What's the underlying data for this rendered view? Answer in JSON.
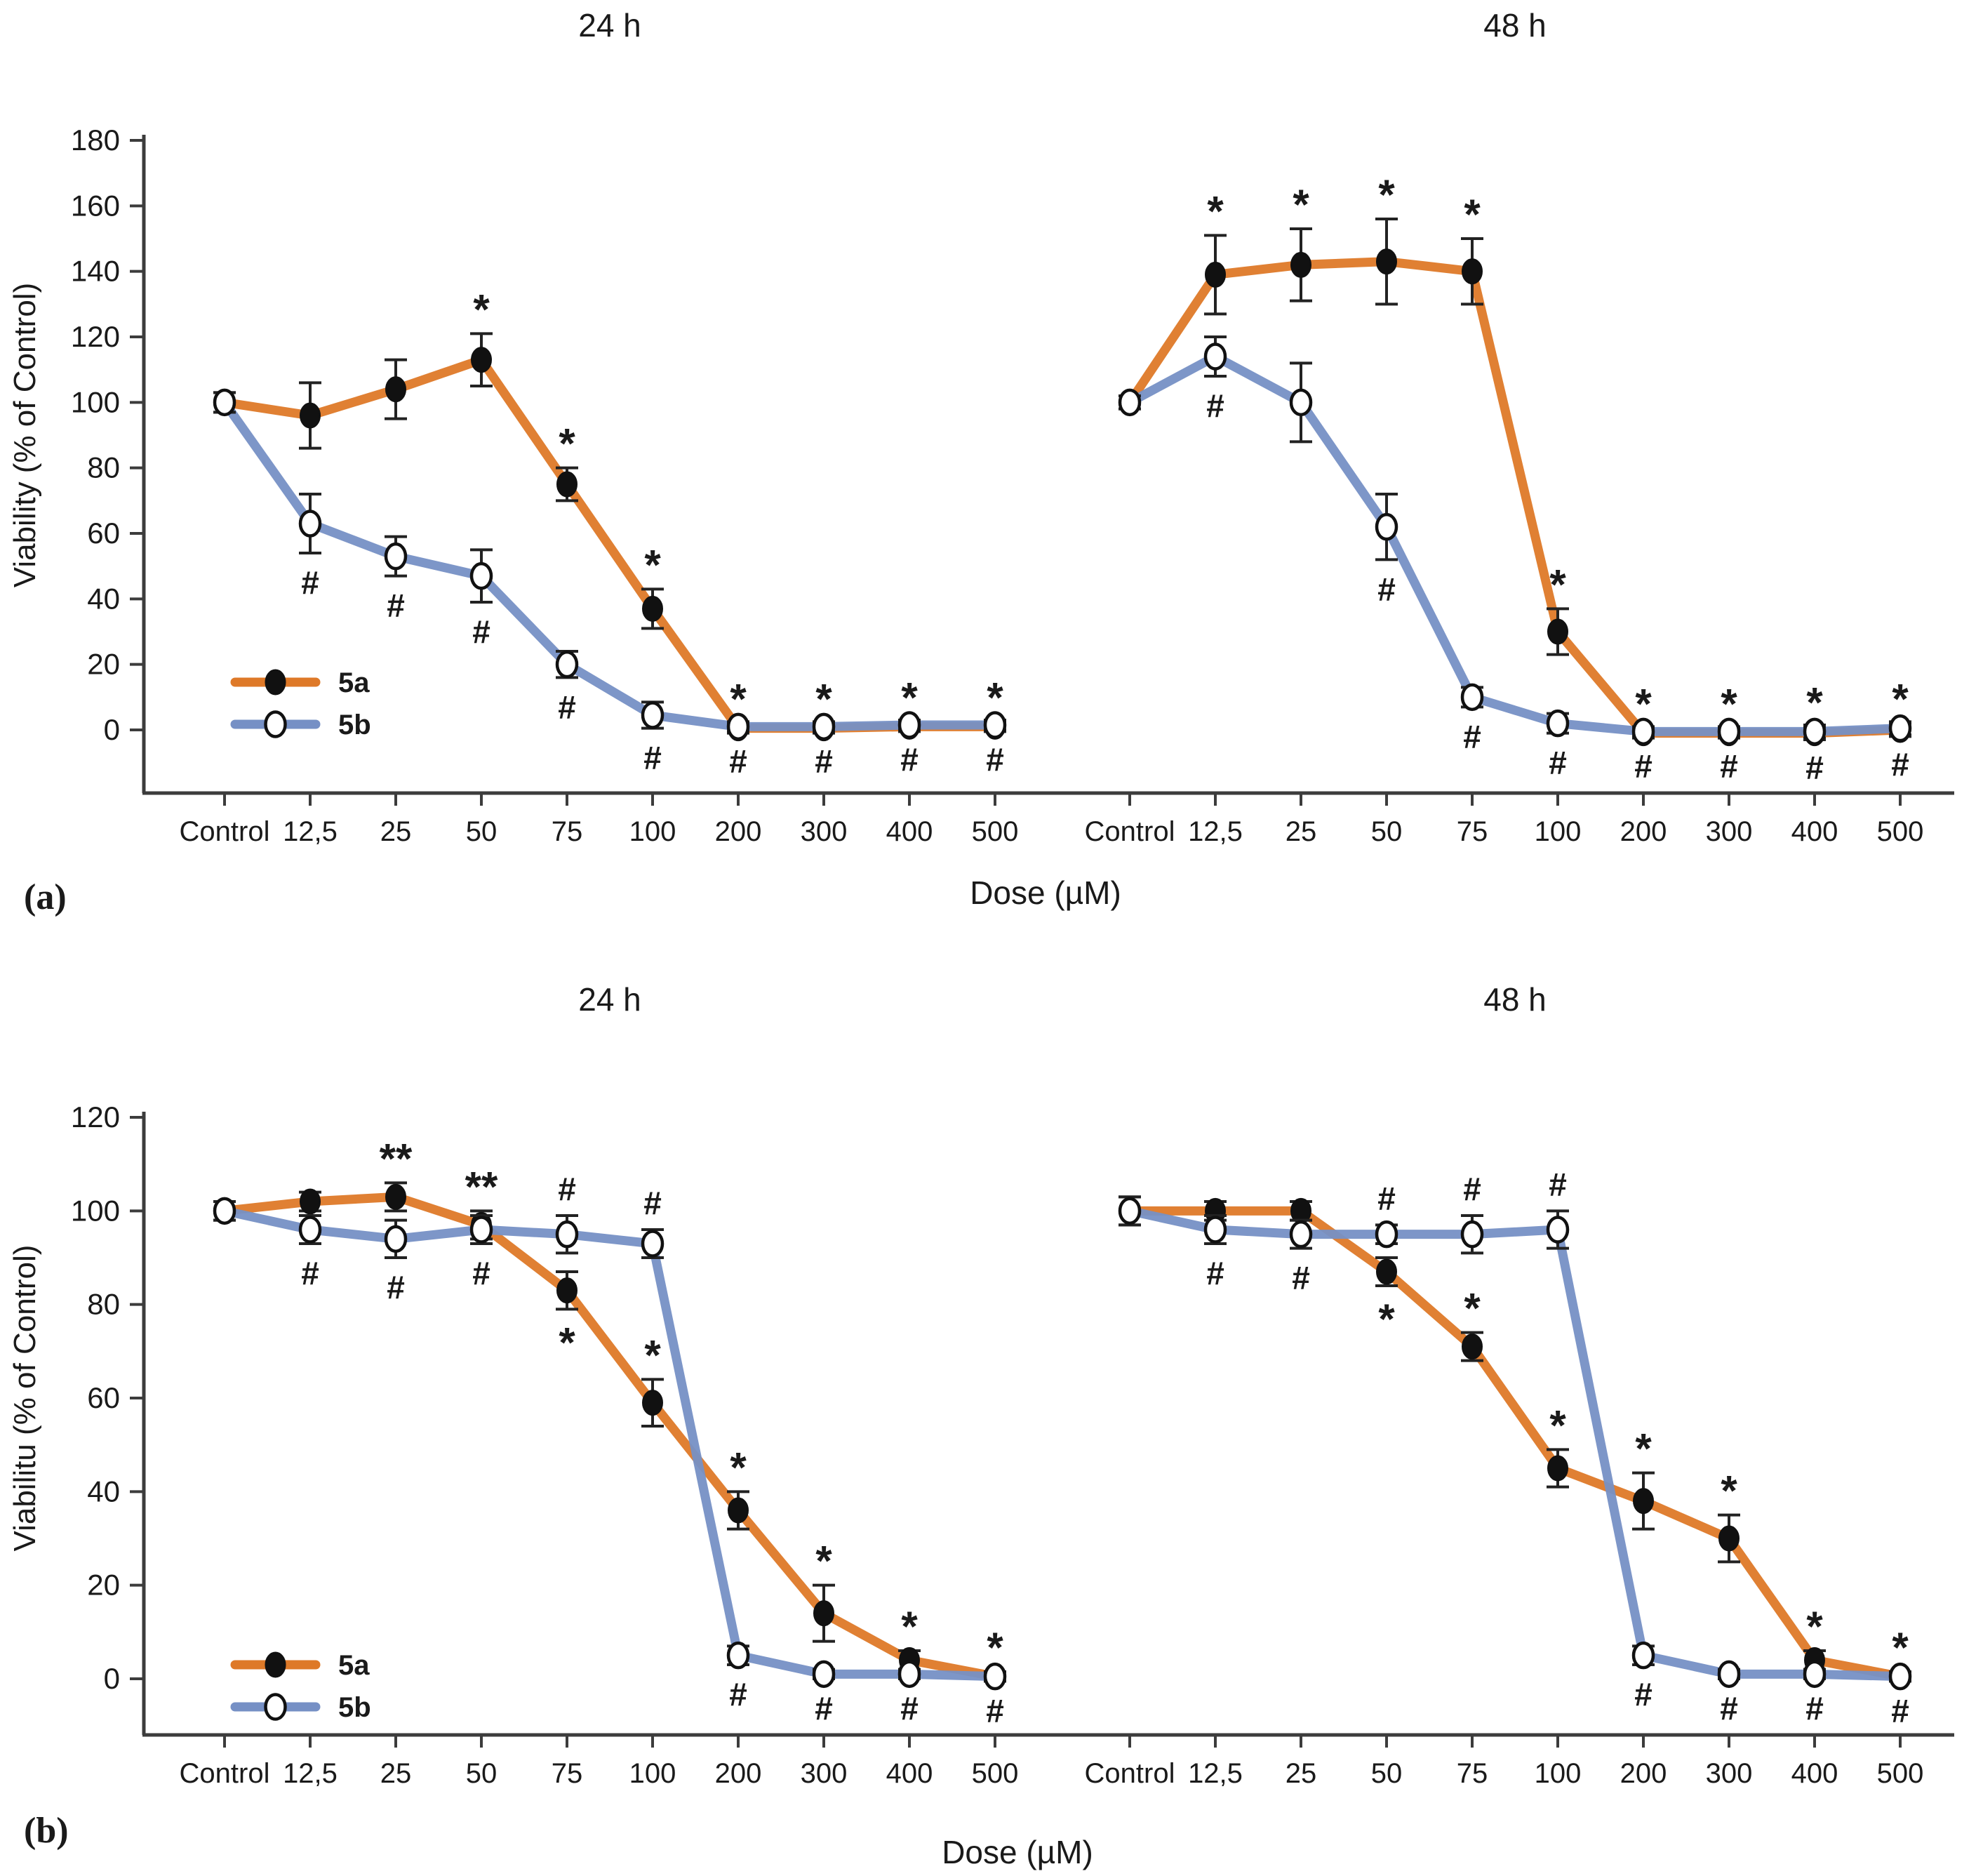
{
  "figure": {
    "background": "#ffffff",
    "axis_color": "#3c3c3c",
    "error_bar_color": "#222222",
    "annotation_color": "#111111"
  },
  "chart_data": [
    {
      "type": "line",
      "panel_label": "(a)",
      "ylabel": "Viability (% of Control)",
      "xlabel": "Dose (µM)",
      "ylim": [
        0,
        180
      ],
      "ytick_step": 20,
      "grid": false,
      "legend_position": "lower-left-inside",
      "categories": [
        "Control",
        "12,5",
        "25",
        "50",
        "75",
        "100",
        "200",
        "300",
        "400",
        "500"
      ],
      "legend": [
        {
          "label": "5a",
          "color": "#DE7928",
          "marker": "filled"
        },
        {
          "label": "5b",
          "color": "#7690C5",
          "marker": "open"
        }
      ],
      "subplots": [
        {
          "title": "24 h",
          "series": [
            {
              "name": "5a",
              "color": "#DE7928",
              "marker": "filled",
              "values": [
                100,
                96,
                104,
                113,
                75,
                37,
                0.5,
                0.5,
                1,
                1
              ],
              "errors": [
                3,
                10,
                9,
                8,
                5,
                6,
                1.5,
                1.5,
                1.5,
                1.5
              ],
              "ann": [
                "",
                "",
                "",
                "*",
                "*",
                "*",
                "*",
                "*",
                "*",
                "*"
              ],
              "ann_pos": [
                "above",
                "above",
                "above",
                "above",
                "above",
                "above",
                "above",
                "above",
                "above",
                "above"
              ]
            },
            {
              "name": "5b",
              "color": "#7690C5",
              "marker": "open",
              "values": [
                100,
                63,
                53,
                47,
                20,
                4.5,
                1,
                1,
                1.5,
                1.5
              ],
              "errors": [
                3,
                9,
                6,
                8,
                4,
                4,
                1.5,
                1.5,
                1.5,
                1.5
              ],
              "ann": [
                "",
                "#",
                "#",
                "#",
                "#",
                "#",
                "#",
                "#",
                "#",
                "#"
              ],
              "ann_pos": [
                "below",
                "below",
                "below",
                "below",
                "below",
                "below",
                "below",
                "below",
                "below",
                "below"
              ]
            }
          ]
        },
        {
          "title": "48 h",
          "series": [
            {
              "name": "5a",
              "color": "#DE7928",
              "marker": "filled",
              "values": [
                100,
                139,
                142,
                143,
                140,
                30,
                -1,
                -1,
                -1,
                0
              ],
              "errors": [
                2,
                12,
                11,
                13,
                10,
                7,
                1.5,
                1.5,
                2,
                2
              ],
              "ann": [
                "",
                "*",
                "*",
                "*",
                "*",
                "*",
                "*",
                "*",
                "*",
                "*"
              ],
              "ann_pos": [
                "above",
                "above",
                "above",
                "above",
                "above",
                "above",
                "above",
                "above",
                "above",
                "above"
              ]
            },
            {
              "name": "5b",
              "color": "#7690C5",
              "marker": "open",
              "values": [
                100,
                114,
                100,
                62,
                10,
                2,
                -0.5,
                -0.5,
                -0.5,
                0.5
              ],
              "errors": [
                2,
                6,
                12,
                10,
                3,
                3,
                1.5,
                1.5,
                2,
                2
              ],
              "ann": [
                "",
                "#",
                "",
                "#",
                "#",
                "#",
                "#",
                "#",
                "#",
                "#"
              ],
              "ann_pos": [
                "below",
                "below",
                "below",
                "below",
                "below",
                "below",
                "below",
                "below",
                "below",
                "below"
              ]
            }
          ]
        }
      ]
    },
    {
      "type": "line",
      "panel_label": "(b)",
      "ylabel": "Viabilitu (% of Control)",
      "xlabel": "Dose (µM)",
      "ylim": [
        0,
        120
      ],
      "ytick_step": 20,
      "grid": false,
      "legend_position": "lower-left-inside",
      "categories": [
        "Control",
        "12,5",
        "25",
        "50",
        "75",
        "100",
        "200",
        "300",
        "400",
        "500"
      ],
      "legend": [
        {
          "label": "5a",
          "color": "#DE7928",
          "marker": "filled"
        },
        {
          "label": "5b",
          "color": "#7690C5",
          "marker": "open"
        }
      ],
      "subplots": [
        {
          "title": "24 h",
          "series": [
            {
              "name": "5a",
              "color": "#DE7928",
              "marker": "filled",
              "values": [
                100,
                102,
                103,
                97,
                83,
                59,
                36,
                14,
                4,
                0.5
              ],
              "errors": [
                2,
                2,
                3,
                3,
                4,
                5,
                4,
                6,
                2,
                1
              ],
              "ann": [
                "",
                "",
                "**",
                "**",
                "*",
                "*",
                "*",
                "*",
                "*",
                "*"
              ],
              "ann_pos": [
                "above",
                "above",
                "above",
                "above",
                "below",
                "above",
                "above",
                "above",
                "above",
                "above"
              ]
            },
            {
              "name": "5b",
              "color": "#7690C5",
              "marker": "open",
              "values": [
                100,
                96,
                94,
                96,
                95,
                93,
                5,
                1,
                1,
                0.5
              ],
              "errors": [
                2,
                3,
                4,
                3,
                4,
                3,
                2,
                1,
                1,
                1
              ],
              "ann": [
                "",
                "#",
                "#",
                "#",
                "#",
                "#",
                "#",
                "#",
                "#",
                "#"
              ],
              "ann_pos": [
                "below",
                "below",
                "below",
                "below",
                "above",
                "above",
                "below",
                "below",
                "below",
                "below"
              ]
            }
          ]
        },
        {
          "title": "48 h",
          "series": [
            {
              "name": "5a",
              "color": "#DE7928",
              "marker": "filled",
              "values": [
                100,
                100,
                100,
                87,
                71,
                45,
                38,
                30,
                4,
                0.5
              ],
              "errors": [
                3,
                2,
                2,
                3,
                3,
                4,
                6,
                5,
                2,
                1
              ],
              "ann": [
                "",
                "",
                "",
                "*",
                "*",
                "*",
                "*",
                "*",
                "*",
                "*"
              ],
              "ann_pos": [
                "above",
                "above",
                "above",
                "below",
                "above",
                "above",
                "above",
                "above",
                "above",
                "above"
              ]
            },
            {
              "name": "5b",
              "color": "#7690C5",
              "marker": "open",
              "values": [
                100,
                96,
                95,
                95,
                95,
                96,
                5,
                1,
                1,
                0.5
              ],
              "errors": [
                3,
                3,
                3,
                2,
                4,
                4,
                2,
                1,
                1,
                1
              ],
              "ann": [
                "",
                "#",
                "#",
                "#",
                "#",
                "#",
                "#",
                "#",
                "#",
                "#"
              ],
              "ann_pos": [
                "below",
                "below",
                "below",
                "above",
                "above",
                "above",
                "below",
                "below",
                "below",
                "below"
              ]
            }
          ]
        }
      ]
    }
  ]
}
